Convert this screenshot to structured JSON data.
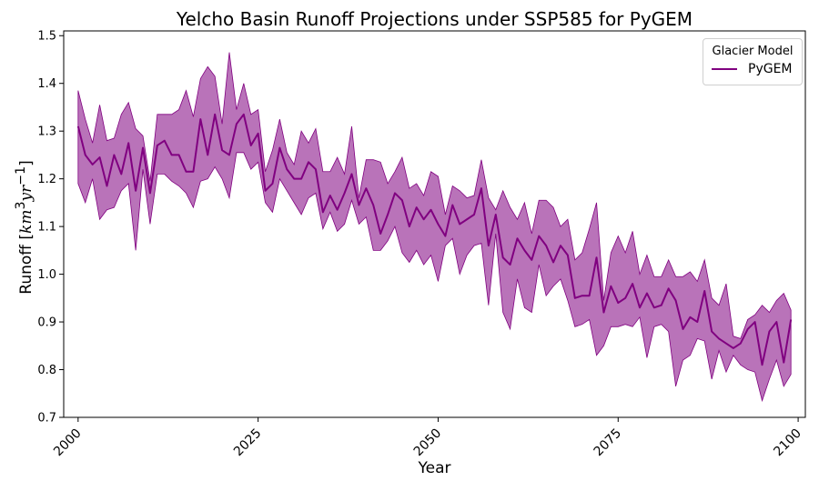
{
  "chart_data": {
    "type": "line",
    "title": "Yelcho Basin Runoff Projections under SSP585 for PyGEM",
    "xlabel": "Year",
    "ylabel": {
      "prefix": "Runoff [",
      "unit_base": "km",
      "unit_exp1": "3",
      "unit_mid": "yr",
      "unit_exp2": "−1",
      "suffix": "]"
    },
    "xlim": [
      1998,
      2101
    ],
    "ylim": [
      0.7,
      1.51
    ],
    "xticks": [
      2000,
      2025,
      2050,
      2075,
      2100
    ],
    "yticks": [
      0.7,
      0.8,
      0.9,
      1.0,
      1.1,
      1.2,
      1.3,
      1.4,
      1.5
    ],
    "grid": false,
    "legend": {
      "title": "Glacier Model",
      "placement": "top-right",
      "entries": [
        "PyGEM"
      ]
    },
    "colors": {
      "line": "#800080",
      "band": "#800080"
    },
    "series": [
      {
        "name": "PyGEM",
        "x": [
          2000,
          2001,
          2002,
          2003,
          2004,
          2005,
          2006,
          2007,
          2008,
          2009,
          2010,
          2011,
          2012,
          2013,
          2014,
          2015,
          2016,
          2017,
          2018,
          2019,
          2020,
          2021,
          2022,
          2023,
          2024,
          2025,
          2026,
          2027,
          2028,
          2029,
          2030,
          2031,
          2032,
          2033,
          2034,
          2035,
          2036,
          2037,
          2038,
          2039,
          2040,
          2041,
          2042,
          2043,
          2044,
          2045,
          2046,
          2047,
          2048,
          2049,
          2050,
          2051,
          2052,
          2053,
          2054,
          2055,
          2056,
          2057,
          2058,
          2059,
          2060,
          2061,
          2062,
          2063,
          2064,
          2065,
          2066,
          2067,
          2068,
          2069,
          2070,
          2071,
          2072,
          2073,
          2074,
          2075,
          2076,
          2077,
          2078,
          2079,
          2080,
          2081,
          2082,
          2083,
          2084,
          2085,
          2086,
          2087,
          2088,
          2089,
          2090,
          2091,
          2092,
          2093,
          2094,
          2095,
          2096,
          2097,
          2098,
          2099
        ],
        "y": [
          1.31,
          1.25,
          1.23,
          1.245,
          1.185,
          1.25,
          1.21,
          1.275,
          1.175,
          1.265,
          1.17,
          1.27,
          1.28,
          1.25,
          1.25,
          1.215,
          1.215,
          1.325,
          1.25,
          1.335,
          1.26,
          1.25,
          1.315,
          1.335,
          1.27,
          1.295,
          1.175,
          1.19,
          1.265,
          1.22,
          1.2,
          1.2,
          1.235,
          1.22,
          1.13,
          1.165,
          1.135,
          1.17,
          1.21,
          1.145,
          1.18,
          1.145,
          1.085,
          1.125,
          1.17,
          1.155,
          1.1,
          1.14,
          1.115,
          1.135,
          1.105,
          1.08,
          1.145,
          1.105,
          1.115,
          1.125,
          1.18,
          1.06,
          1.125,
          1.035,
          1.02,
          1.075,
          1.05,
          1.03,
          1.08,
          1.06,
          1.025,
          1.06,
          1.04,
          0.95,
          0.955,
          0.955,
          1.035,
          0.92,
          0.975,
          0.94,
          0.95,
          0.98,
          0.93,
          0.96,
          0.93,
          0.935,
          0.97,
          0.945,
          0.885,
          0.91,
          0.9,
          0.965,
          0.88,
          0.865,
          0.855,
          0.845,
          0.855,
          0.885,
          0.9,
          0.81,
          0.88,
          0.9,
          0.815,
          0.905
        ],
        "lower": [
          1.19,
          1.15,
          1.2,
          1.115,
          1.135,
          1.14,
          1.175,
          1.19,
          1.05,
          1.22,
          1.105,
          1.21,
          1.21,
          1.195,
          1.185,
          1.17,
          1.14,
          1.195,
          1.2,
          1.225,
          1.2,
          1.16,
          1.255,
          1.255,
          1.22,
          1.235,
          1.15,
          1.13,
          1.2,
          1.175,
          1.15,
          1.125,
          1.16,
          1.17,
          1.095,
          1.13,
          1.09,
          1.105,
          1.155,
          1.105,
          1.12,
          1.05,
          1.05,
          1.07,
          1.1,
          1.045,
          1.025,
          1.05,
          1.02,
          1.04,
          0.985,
          1.06,
          1.075,
          1.0,
          1.04,
          1.06,
          1.065,
          0.935,
          1.085,
          0.92,
          0.885,
          0.99,
          0.93,
          0.92,
          1.02,
          0.955,
          0.975,
          0.99,
          0.945,
          0.89,
          0.895,
          0.905,
          0.83,
          0.85,
          0.89,
          0.89,
          0.895,
          0.89,
          0.91,
          0.825,
          0.89,
          0.895,
          0.88,
          0.765,
          0.82,
          0.83,
          0.865,
          0.86,
          0.78,
          0.84,
          0.795,
          0.83,
          0.81,
          0.8,
          0.795,
          0.735,
          0.78,
          0.82,
          0.765,
          0.79
        ],
        "upper": [
          1.385,
          1.325,
          1.275,
          1.355,
          1.28,
          1.285,
          1.335,
          1.36,
          1.305,
          1.29,
          1.195,
          1.335,
          1.335,
          1.335,
          1.345,
          1.385,
          1.33,
          1.41,
          1.435,
          1.415,
          1.315,
          1.465,
          1.345,
          1.4,
          1.335,
          1.345,
          1.215,
          1.26,
          1.325,
          1.255,
          1.23,
          1.3,
          1.275,
          1.305,
          1.215,
          1.215,
          1.245,
          1.21,
          1.31,
          1.16,
          1.24,
          1.24,
          1.235,
          1.19,
          1.215,
          1.245,
          1.18,
          1.19,
          1.165,
          1.215,
          1.205,
          1.125,
          1.185,
          1.175,
          1.16,
          1.165,
          1.24,
          1.16,
          1.135,
          1.175,
          1.14,
          1.115,
          1.15,
          1.085,
          1.155,
          1.155,
          1.14,
          1.1,
          1.115,
          1.03,
          1.045,
          1.095,
          1.15,
          0.945,
          1.045,
          1.08,
          1.045,
          1.09,
          1.0,
          1.04,
          0.995,
          0.995,
          1.03,
          0.995,
          0.995,
          1.005,
          0.985,
          1.03,
          0.95,
          0.935,
          0.98,
          0.87,
          0.865,
          0.905,
          0.915,
          0.935,
          0.92,
          0.945,
          0.96,
          0.925
        ]
      }
    ]
  }
}
